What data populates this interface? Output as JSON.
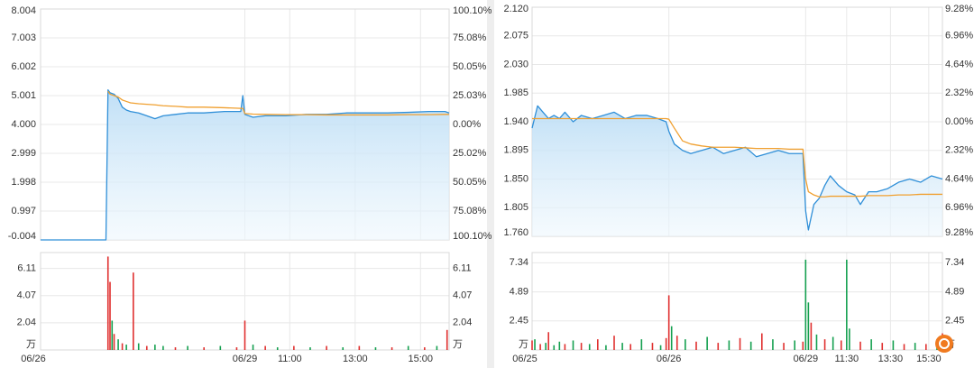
{
  "chart_data": [
    {
      "type": "line",
      "x": [
        0,
        16,
        16.5,
        17,
        18,
        19,
        20,
        21,
        22,
        24,
        26,
        28,
        30,
        33,
        36,
        40,
        45,
        49,
        49.5,
        50,
        52,
        55,
        60,
        65,
        70,
        75,
        80,
        85,
        90,
        95,
        99,
        100
      ],
      "series": [
        {
          "color": "#2f8fd8",
          "values": [
            -0.004,
            -0.004,
            5.2,
            5.1,
            5.05,
            4.9,
            4.6,
            4.5,
            4.45,
            4.4,
            4.3,
            4.2,
            4.3,
            4.35,
            4.4,
            4.4,
            4.45,
            4.45,
            5.0,
            4.35,
            4.25,
            4.3,
            4.3,
            4.35,
            4.35,
            4.4,
            4.4,
            4.4,
            4.42,
            4.45,
            4.45,
            4.4
          ]
        },
        {
          "color": "#f0a030",
          "values": [
            null,
            null,
            5.15,
            5.05,
            5.0,
            4.95,
            4.85,
            4.8,
            4.75,
            4.72,
            4.7,
            4.68,
            4.65,
            4.63,
            4.6,
            4.6,
            4.58,
            4.56,
            4.56,
            4.38,
            4.36,
            4.35,
            4.34,
            4.34,
            4.33,
            4.33,
            4.33,
            4.33,
            4.34,
            4.34,
            4.35,
            4.35
          ]
        }
      ],
      "xlim": [
        0,
        100
      ],
      "ylim": [
        -0.004,
        8.004
      ],
      "yticks": [
        -0.004,
        0.997,
        1.998,
        2.999,
        {
          "value": 4,
          "label": "4.000"
        },
        5.001,
        6.002,
        7.003,
        8.004
      ],
      "y2lim": [
        -100.1,
        100.1
      ],
      "y2ticks": [
        {
          "value": -100.1,
          "label": "100.10%"
        },
        {
          "value": -75.08,
          "label": "75.08%"
        },
        {
          "value": -50.05,
          "label": "50.05%"
        },
        {
          "value": -25.02,
          "label": "25.02%"
        },
        {
          "value": 0,
          "label": "0.00%"
        },
        {
          "value": 25.03,
          "label": "25.03%"
        },
        {
          "value": 50.05,
          "label": "50.05%"
        },
        {
          "value": 75.08,
          "label": "75.08%"
        },
        {
          "value": 100.1,
          "label": "100.10%"
        }
      ],
      "up_color": "#e0302f",
      "down_color": "#15a050",
      "base_color": "#e0302f",
      "grid": true
    },
    {
      "type": "bar",
      "x": [
        16.5,
        17,
        17.5,
        18,
        19,
        20,
        21,
        22.7,
        24,
        26,
        28,
        30,
        33,
        36,
        40,
        44,
        48,
        50,
        52,
        55,
        58,
        62,
        66,
        70,
        74,
        78,
        82,
        86,
        90,
        94,
        97,
        99.5
      ],
      "values": [
        7.0,
        5.1,
        2.2,
        1.2,
        0.8,
        0.5,
        0.4,
        5.8,
        0.5,
        0.3,
        0.4,
        0.3,
        0.2,
        0.3,
        0.2,
        0.3,
        0.2,
        2.2,
        0.4,
        0.3,
        0.2,
        0.3,
        0.2,
        0.3,
        0.2,
        0.3,
        0.2,
        0.2,
        0.3,
        0.2,
        0.3,
        1.5
      ],
      "bar_colors": [
        "#e0302f",
        "#e0302f",
        "#15a050",
        "#e0302f",
        "#15a050",
        "#e0302f",
        "#15a050",
        "#e0302f",
        "#15a050",
        "#e0302f",
        "#15a050",
        "#15a050",
        "#e0302f",
        "#15a050",
        "#e0302f",
        "#15a050",
        "#e0302f",
        "#e0302f",
        "#15a050",
        "#e0302f",
        "#15a050",
        "#e0302f",
        "#15a050",
        "#e0302f",
        "#15a050",
        "#e0302f",
        "#15a050",
        "#e0302f",
        "#15a050",
        "#e0302f",
        "#15a050",
        "#e0302f"
      ],
      "xlim": [
        0,
        100
      ],
      "xticks": [
        {
          "value": 0,
          "label": "06/26"
        },
        {
          "value": 50,
          "label": "06/29"
        },
        {
          "value": 61,
          "label": "11:00"
        },
        {
          "value": 77,
          "label": "13:00"
        },
        {
          "value": 93,
          "label": "15:00"
        }
      ],
      "ylim": [
        0,
        7.3
      ],
      "yticks": [
        {
          "value": 0,
          "label": "万"
        },
        2.04,
        4.07,
        6.11
      ],
      "grid": true
    },
    {
      "type": "line",
      "x": [
        0,
        2,
        4,
        6,
        8,
        10,
        12,
        15,
        18,
        22,
        26,
        30,
        34,
        38,
        42,
        46,
        49,
        50,
        52,
        55,
        58,
        62,
        66,
        70,
        74,
        78,
        82,
        86,
        90,
        94,
        99,
        100,
        101,
        103,
        105,
        107,
        109,
        112,
        115,
        118,
        120,
        123,
        126,
        130,
        134,
        138,
        142,
        146,
        150
      ],
      "series": [
        {
          "color": "#2f8fd8",
          "values": [
            1.93,
            1.965,
            1.955,
            1.945,
            1.95,
            1.945,
            1.955,
            1.94,
            1.95,
            1.945,
            1.95,
            1.955,
            1.945,
            1.95,
            1.95,
            1.945,
            1.94,
            1.925,
            1.905,
            1.895,
            1.89,
            1.895,
            1.9,
            1.89,
            1.895,
            1.9,
            1.885,
            1.89,
            1.895,
            1.89,
            1.89,
            1.8,
            1.77,
            1.81,
            1.82,
            1.84,
            1.855,
            1.84,
            1.83,
            1.825,
            1.81,
            1.83,
            1.83,
            1.835,
            1.845,
            1.85,
            1.845,
            1.855,
            1.85
          ]
        },
        {
          "color": "#f0a030",
          "values": [
            1.945,
            1.945,
            1.945,
            1.945,
            1.945,
            1.945,
            1.945,
            1.945,
            1.945,
            1.945,
            1.945,
            1.945,
            1.945,
            1.945,
            1.945,
            1.945,
            1.945,
            1.944,
            1.93,
            1.91,
            1.905,
            1.902,
            1.9,
            1.9,
            1.9,
            1.899,
            1.898,
            1.898,
            1.898,
            1.897,
            1.897,
            1.85,
            1.83,
            1.825,
            1.822,
            1.822,
            1.823,
            1.823,
            1.823,
            1.823,
            1.823,
            1.824,
            1.824,
            1.824,
            1.825,
            1.825,
            1.826,
            1.826,
            1.826
          ]
        }
      ],
      "xlim": [
        0,
        150
      ],
      "ylim": [
        1.76,
        2.12
      ],
      "yticks": [
        {
          "value": 1.76,
          "label": "1.760"
        },
        1.805,
        {
          "value": 1.85,
          "label": "1.850"
        },
        1.895,
        {
          "value": 1.94,
          "label": "1.940"
        },
        1.985,
        {
          "value": 2.03,
          "label": "2.030"
        },
        2.075,
        {
          "value": 2.12,
          "label": "2.120"
        }
      ],
      "y2lim": [
        -9.28,
        9.28
      ],
      "y2ticks": [
        {
          "value": -9.28,
          "label": "9.28%"
        },
        {
          "value": -6.96,
          "label": "6.96%"
        },
        {
          "value": -4.64,
          "label": "4.64%"
        },
        {
          "value": -2.32,
          "label": "2.32%"
        },
        {
          "value": 0,
          "label": "0.00%"
        },
        {
          "value": 2.32,
          "label": "2.32%"
        },
        {
          "value": 4.64,
          "label": "4.64%"
        },
        {
          "value": 6.96,
          "label": "6.96%"
        },
        {
          "value": 9.28,
          "label": "9.28%"
        }
      ],
      "up_color": "#e0302f",
      "down_color": "#15a050",
      "base_color": "#333333",
      "grid": true
    },
    {
      "type": "bar",
      "x": [
        0,
        1,
        3,
        5,
        6,
        8,
        10,
        12,
        15,
        18,
        21,
        24,
        27,
        30,
        33,
        36,
        40,
        44,
        47,
        49,
        50,
        51,
        53,
        56,
        60,
        64,
        68,
        72,
        76,
        80,
        84,
        88,
        92,
        96,
        99,
        100,
        101,
        102,
        104,
        107,
        110,
        113,
        115,
        116,
        120,
        124,
        128,
        132,
        136,
        140,
        144,
        148,
        150
      ],
      "values": [
        0.8,
        0.9,
        0.5,
        0.6,
        1.5,
        0.4,
        0.7,
        0.5,
        0.8,
        0.6,
        0.5,
        0.9,
        0.4,
        1.2,
        0.6,
        0.5,
        0.9,
        0.6,
        0.4,
        1.0,
        4.6,
        2.0,
        1.2,
        0.9,
        0.7,
        1.1,
        0.6,
        0.8,
        1.0,
        0.7,
        1.4,
        0.9,
        0.6,
        0.8,
        0.7,
        7.6,
        4.0,
        2.3,
        1.3,
        0.9,
        1.1,
        0.8,
        7.6,
        1.8,
        0.7,
        0.9,
        0.6,
        0.8,
        0.5,
        0.6,
        0.5,
        0.9,
        1.4
      ],
      "bar_colors": [
        "#e0302f",
        "#15a050",
        "#e0302f",
        "#15a050",
        "#e0302f",
        "#15a050",
        "#15a050",
        "#e0302f",
        "#15a050",
        "#e0302f",
        "#15a050",
        "#e0302f",
        "#15a050",
        "#e0302f",
        "#15a050",
        "#e0302f",
        "#15a050",
        "#e0302f",
        "#15a050",
        "#e0302f",
        "#e0302f",
        "#15a050",
        "#e0302f",
        "#15a050",
        "#e0302f",
        "#15a050",
        "#e0302f",
        "#15a050",
        "#e0302f",
        "#15a050",
        "#e0302f",
        "#15a050",
        "#e0302f",
        "#15a050",
        "#e0302f",
        "#15a050",
        "#15a050",
        "#e0302f",
        "#15a050",
        "#e0302f",
        "#15a050",
        "#e0302f",
        "#15a050",
        "#15a050",
        "#e0302f",
        "#15a050",
        "#e0302f",
        "#15a050",
        "#e0302f",
        "#15a050",
        "#e0302f",
        "#15a050",
        "#e0302f"
      ],
      "xlim": [
        0,
        150
      ],
      "xticks": [
        {
          "value": 0,
          "label": "06/25"
        },
        {
          "value": 50,
          "label": "06/26"
        },
        {
          "value": 100,
          "label": "06/29"
        },
        {
          "value": 115,
          "label": "11:30"
        },
        {
          "value": 131,
          "label": "13:30"
        },
        {
          "value": 145,
          "label": "15:30"
        }
      ],
      "ylim": [
        0,
        8.2
      ],
      "yticks": [
        {
          "value": 0,
          "label": "万"
        },
        2.45,
        4.89,
        7.34
      ],
      "grid": true
    }
  ]
}
